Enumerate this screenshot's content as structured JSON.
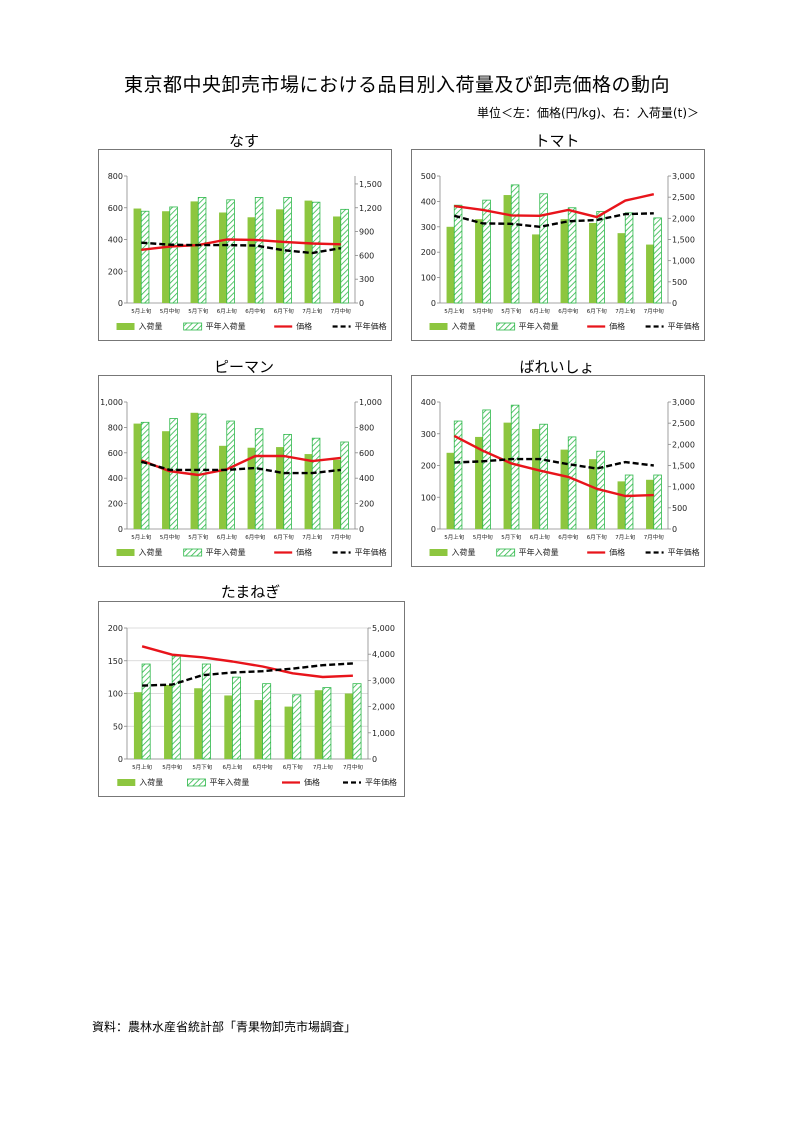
{
  "page": {
    "title": "東京都中央卸売市場における品目別入荷量及び卸売価格の動向",
    "unit_note": "単位＜左：価格(円/kg)、右：入荷量(t)＞",
    "source": "資料：農林水産省統計部「青果物卸売市場調査」"
  },
  "colors": {
    "arrival": "#8dc63f",
    "normal_arrival": "#2eb84a",
    "price": "#e8141b",
    "normal_price": "#000000"
  },
  "chart_data": [
    {
      "type": "bar",
      "title": "なす",
      "categories": [
        "5月上旬",
        "5月中旬",
        "5月下旬",
        "6月上旬",
        "6月中旬",
        "6月下旬",
        "7月上旬",
        "7月中旬"
      ],
      "left_axis": {
        "range": [
          0,
          800
        ],
        "ticks": [
          "0",
          "200",
          "400",
          "600",
          "800"
        ]
      },
      "right_axis": {
        "range": [
          0,
          1600
        ],
        "ticks": [
          "0",
          "300",
          "600",
          "900",
          "1,200",
          "1,500"
        ]
      },
      "series": [
        {
          "name": "入荷量",
          "kind": "bar",
          "axis": "left",
          "values": [
            595,
            578,
            640,
            570,
            540,
            590,
            645,
            545
          ]
        },
        {
          "name": "平年入荷量",
          "kind": "bar-hatched",
          "axis": "left",
          "values": [
            578,
            605,
            665,
            650,
            665,
            665,
            635,
            590
          ]
        },
        {
          "name": "価格",
          "kind": "line",
          "axis": "right",
          "values": [
            670,
            710,
            730,
            800,
            795,
            770,
            750,
            740
          ]
        },
        {
          "name": "平年価格",
          "kind": "line-dashed",
          "axis": "right",
          "values": [
            760,
            735,
            730,
            730,
            725,
            665,
            630,
            690
          ]
        }
      ]
    },
    {
      "type": "bar",
      "title": "トマト",
      "categories": [
        "5月上旬",
        "5月中旬",
        "5月下旬",
        "6月上旬",
        "6月中旬",
        "6月下旬",
        "7月上旬",
        "7月中旬"
      ],
      "left_axis": {
        "range": [
          0,
          500
        ],
        "ticks": [
          "0",
          "100",
          "200",
          "300",
          "400",
          "500"
        ]
      },
      "right_axis": {
        "range": [
          0,
          3000
        ],
        "ticks": [
          "0",
          "500",
          "1,000",
          "1,500",
          "2,000",
          "2,500",
          "3,000"
        ]
      },
      "series": [
        {
          "name": "入荷量",
          "kind": "bar",
          "axis": "left",
          "values": [
            300,
            330,
            425,
            270,
            330,
            315,
            275,
            230
          ]
        },
        {
          "name": "平年入荷量",
          "kind": "bar-hatched",
          "axis": "left",
          "values": [
            385,
            405,
            465,
            430,
            375,
            360,
            355,
            335
          ]
        },
        {
          "name": "価格",
          "kind": "line",
          "axis": "right",
          "values": [
            2290,
            2200,
            2070,
            2060,
            2200,
            2030,
            2420,
            2570
          ]
        },
        {
          "name": "平年価格",
          "kind": "line-dashed",
          "axis": "right",
          "values": [
            2060,
            1880,
            1870,
            1800,
            1930,
            1960,
            2100,
            2120
          ]
        }
      ]
    },
    {
      "type": "bar",
      "title": "ピーマン",
      "categories": [
        "5月上旬",
        "5月中旬",
        "5月下旬",
        "6月上旬",
        "6月中旬",
        "6月下旬",
        "7月上旬",
        "7月中旬"
      ],
      "left_axis": {
        "range": [
          0,
          1000
        ],
        "ticks": [
          "0",
          "200",
          "400",
          "600",
          "800",
          "1,000"
        ]
      },
      "right_axis": {
        "range": [
          0,
          1000
        ],
        "ticks": [
          "0",
          "200",
          "400",
          "600",
          "800",
          "1,000"
        ]
      },
      "series": [
        {
          "name": "入荷量",
          "kind": "bar",
          "axis": "left",
          "values": [
            830,
            770,
            915,
            655,
            640,
            645,
            590,
            545
          ]
        },
        {
          "name": "平年入荷量",
          "kind": "bar-hatched",
          "axis": "left",
          "values": [
            840,
            870,
            905,
            850,
            790,
            745,
            715,
            685
          ]
        },
        {
          "name": "価格",
          "kind": "line",
          "axis": "right",
          "values": [
            540,
            455,
            425,
            470,
            575,
            575,
            535,
            560
          ]
        },
        {
          "name": "平年価格",
          "kind": "line-dashed",
          "axis": "right",
          "values": [
            530,
            465,
            465,
            465,
            480,
            440,
            440,
            465
          ]
        }
      ]
    },
    {
      "type": "bar",
      "title": "ばれいしょ",
      "categories": [
        "5月上旬",
        "5月中旬",
        "5月下旬",
        "6月上旬",
        "6月中旬",
        "6月下旬",
        "7月上旬",
        "7月中旬"
      ],
      "left_axis": {
        "range": [
          0,
          400
        ],
        "ticks": [
          "0",
          "100",
          "200",
          "300",
          "400"
        ]
      },
      "right_axis": {
        "range": [
          0,
          3000
        ],
        "ticks": [
          "0",
          "500",
          "1,000",
          "1,500",
          "2,000",
          "2,500",
          "3,000"
        ]
      },
      "series": [
        {
          "name": "入荷量",
          "kind": "bar",
          "axis": "left",
          "values": [
            240,
            290,
            335,
            315,
            250,
            220,
            150,
            155
          ]
        },
        {
          "name": "平年入荷量",
          "kind": "bar-hatched",
          "axis": "left",
          "values": [
            340,
            375,
            390,
            330,
            290,
            245,
            170,
            170
          ]
        },
        {
          "name": "価格",
          "kind": "line",
          "axis": "right",
          "values": [
            2200,
            1850,
            1550,
            1380,
            1230,
            950,
            780,
            800
          ]
        },
        {
          "name": "平年価格",
          "kind": "line-dashed",
          "axis": "right",
          "values": [
            1570,
            1600,
            1650,
            1650,
            1530,
            1430,
            1580,
            1500
          ]
        }
      ]
    },
    {
      "type": "bar",
      "title": "たまねぎ",
      "categories": [
        "5月上旬",
        "5月中旬",
        "5月下旬",
        "6月上旬",
        "6月中旬",
        "6月下旬",
        "7月上旬",
        "7月中旬"
      ],
      "left_axis": {
        "range": [
          0,
          200
        ],
        "ticks": [
          "0",
          "50",
          "100",
          "150",
          "200"
        ]
      },
      "right_axis": {
        "range": [
          0,
          5000
        ],
        "ticks": [
          "0",
          "1,000",
          "2,000",
          "3,000",
          "4,000",
          "5,000"
        ]
      },
      "series": [
        {
          "name": "入荷量",
          "kind": "bar",
          "axis": "left",
          "values": [
            102,
            113,
            108,
            97,
            90,
            80,
            105,
            100
          ]
        },
        {
          "name": "平年入荷量",
          "kind": "bar-hatched",
          "axis": "left",
          "values": [
            145,
            157,
            145,
            125,
            115,
            98,
            109,
            115
          ]
        },
        {
          "name": "価格",
          "kind": "line",
          "axis": "right",
          "values": [
            4300,
            3980,
            3880,
            3720,
            3530,
            3270,
            3130,
            3180
          ]
        },
        {
          "name": "平年価格",
          "kind": "line-dashed",
          "axis": "right",
          "values": [
            2800,
            2840,
            3200,
            3300,
            3350,
            3450,
            3580,
            3650
          ]
        }
      ]
    }
  ]
}
